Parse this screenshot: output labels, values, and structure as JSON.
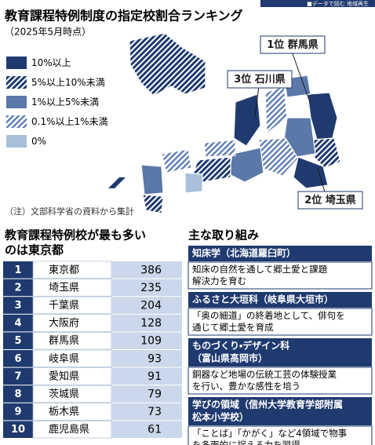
{
  "header": {
    "banner": "■データで読む 地域再生",
    "title": "教育課程特例制度の指定校割合ランキング",
    "subtitle": "（2025年5月時点）"
  },
  "legend": [
    "10%以上",
    "5%以上10%未満",
    "1%以上5%未満",
    "0.1%以上1%未満",
    "0%"
  ],
  "map_labels": [
    "1位 群馬県",
    "3位 石川県",
    "2位 埼玉県"
  ],
  "note": "（注）文部科学省の資料から集計",
  "ranking": {
    "title": [
      "教育課程特例校が最も多い",
      "のは東京都"
    ],
    "rows": [
      [
        1,
        "東京都",
        386
      ],
      [
        2,
        "埼玉県",
        235
      ],
      [
        3,
        "千葉県",
        204
      ],
      [
        4,
        "大阪府",
        128
      ],
      [
        5,
        "群馬県",
        109
      ],
      [
        6,
        "岐阜県",
        93
      ],
      [
        7,
        "愛知県",
        91
      ],
      [
        8,
        "茨城県",
        79
      ],
      [
        9,
        "栃木県",
        73
      ],
      [
        10,
        "鹿児島県",
        61
      ]
    ]
  },
  "initiatives": {
    "title": "主な取り組み",
    "items": [
      {
        "heading": [
          "知床学（北海道羅臼町）"
        ],
        "body": [
          "知床の自然を通して郷土愛と課題",
          "解決力を育む"
        ]
      },
      {
        "heading": [
          "ふるさと大垣科（岐阜県大垣市）"
        ],
        "body": [
          "「奥の細道」の終着地として、俳句を",
          "通じて郷土愛を育成"
        ]
      },
      {
        "heading": [
          "ものづくり・デザイン科",
          "（富山県高岡市）"
        ],
        "body": [
          "銅器など地場の伝統工芸の体験授業",
          "を行い、豊かな感性を培う"
        ]
      },
      {
        "heading": [
          "学びの領域（信州大学教育学部附属",
          "松本小学校）"
        ],
        "body": [
          "「ことば」「かがく」など4領域で物事",
          "を多面的に捉える力を習得"
        ]
      }
    ]
  }
}
